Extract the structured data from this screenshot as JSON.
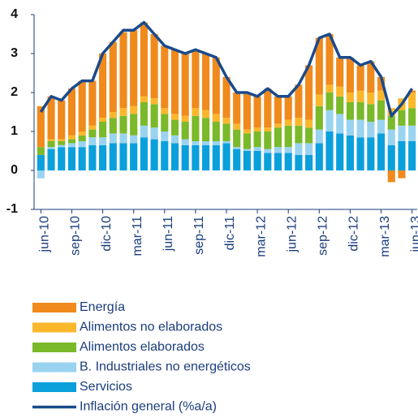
{
  "chart_data": {
    "type": "bar",
    "stacked": true,
    "categories": [
      "jun-10",
      null,
      null,
      "sep-10",
      null,
      null,
      "dic-10",
      null,
      null,
      "mar-11",
      null,
      null,
      "jun-11",
      null,
      null,
      "sep-11",
      null,
      null,
      "dic-11",
      null,
      null,
      "mar-12",
      null,
      null,
      "jun-12",
      null,
      null,
      "sep-12",
      null,
      null,
      "dic-12",
      null,
      null,
      "mar-13",
      null,
      null,
      "jun-13"
    ],
    "series": [
      {
        "name": "Servicios",
        "color": "#0aa0dc",
        "values": [
          0.4,
          0.55,
          0.6,
          0.6,
          0.6,
          0.65,
          0.65,
          0.7,
          0.7,
          0.7,
          0.85,
          0.8,
          0.75,
          0.7,
          0.65,
          0.65,
          0.65,
          0.65,
          0.7,
          0.55,
          0.5,
          0.5,
          0.45,
          0.45,
          0.45,
          0.4,
          0.4,
          0.7,
          1.0,
          0.95,
          0.9,
          0.85,
          0.85,
          0.95,
          0.65,
          0.75,
          0.75
        ]
      },
      {
        "name": "B. Industriales no energéticos",
        "color": "#9ad3f0",
        "values": [
          -0.2,
          0.05,
          0.05,
          0.1,
          0.15,
          0.2,
          0.2,
          0.25,
          0.25,
          0.2,
          0.3,
          0.3,
          0.25,
          0.2,
          0.15,
          0.1,
          0.1,
          0.1,
          0.05,
          0.05,
          0.05,
          0.1,
          0.1,
          0.15,
          0.15,
          0.3,
          0.3,
          0.35,
          0.55,
          0.5,
          0.4,
          0.45,
          0.4,
          0.35,
          0.4,
          0.4,
          0.4
        ]
      },
      {
        "name": "Alimentos elaborados",
        "color": "#7ab929",
        "values": [
          0.2,
          0.15,
          0.1,
          0.1,
          0.15,
          0.2,
          0.4,
          0.4,
          0.45,
          0.55,
          0.6,
          0.6,
          0.45,
          0.4,
          0.45,
          0.65,
          0.6,
          0.5,
          0.45,
          0.45,
          0.4,
          0.4,
          0.45,
          0.5,
          0.55,
          0.45,
          0.4,
          0.6,
          0.45,
          0.45,
          0.45,
          0.45,
          0.45,
          0.5,
          0.35,
          0.4,
          0.45
        ]
      },
      {
        "name": "Alimentos no elaborados",
        "color": "#fbb72c",
        "values": [
          0.0,
          0.05,
          0.05,
          0.1,
          0.1,
          0.1,
          0.1,
          0.15,
          0.2,
          0.2,
          0.15,
          0.15,
          0.15,
          0.15,
          0.15,
          0.2,
          0.2,
          0.2,
          0.15,
          0.15,
          0.1,
          0.1,
          0.1,
          0.1,
          0.15,
          0.2,
          0.2,
          0.3,
          0.2,
          0.25,
          0.25,
          0.3,
          0.3,
          0.25,
          0.2,
          0.3,
          0.4
        ]
      },
      {
        "name": "Energía",
        "color": "#f08a1d",
        "values": [
          1.05,
          1.1,
          1.0,
          1.2,
          1.3,
          1.15,
          1.65,
          1.8,
          1.95,
          1.95,
          1.9,
          1.65,
          1.6,
          1.65,
          1.6,
          1.5,
          1.45,
          1.45,
          1.05,
          0.8,
          0.95,
          0.8,
          1.0,
          0.7,
          0.6,
          0.85,
          1.4,
          1.45,
          1.3,
          0.75,
          0.9,
          0.65,
          0.8,
          0.35,
          -0.3,
          -0.2,
          0.05
        ]
      }
    ],
    "line": {
      "name": "Inflación general (%a/a)",
      "color": "#1a4a8c",
      "values": [
        1.5,
        1.9,
        1.8,
        2.1,
        2.3,
        2.3,
        3.0,
        3.3,
        3.6,
        3.6,
        3.8,
        3.5,
        3.2,
        3.1,
        3.0,
        3.1,
        3.0,
        2.9,
        2.4,
        2.0,
        2.0,
        1.9,
        2.1,
        1.9,
        1.9,
        2.2,
        2.7,
        3.4,
        3.5,
        2.9,
        2.9,
        2.7,
        2.8,
        2.4,
        1.4,
        1.7,
        2.1
      ]
    },
    "ylim": [
      -1,
      4
    ],
    "yticks": [
      -1,
      0,
      1,
      2,
      3,
      4
    ]
  }
}
